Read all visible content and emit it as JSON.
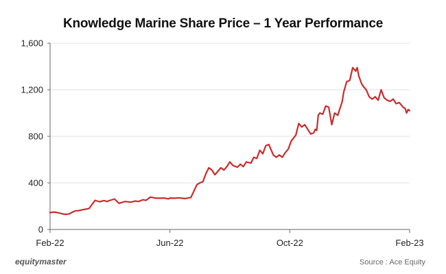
{
  "chart_data": {
    "type": "line",
    "title": "Knowledge Marine Share Price – 1 Year Performance",
    "xlabel": "",
    "ylabel": "",
    "ylim": [
      0,
      1600
    ],
    "yticks": [
      {
        "value": 0,
        "label": "0"
      },
      {
        "value": 400,
        "label": "400"
      },
      {
        "value": 800,
        "label": "800"
      },
      {
        "value": 1200,
        "label": "1,200"
      },
      {
        "value": 1600,
        "label": "1,600"
      }
    ],
    "xlim": [
      0,
      12
    ],
    "xticks": [
      {
        "value": 0,
        "label": "Feb-22"
      },
      {
        "value": 4,
        "label": "Jun-22"
      },
      {
        "value": 8,
        "label": "Oct-22"
      },
      {
        "value": 12,
        "label": "Feb-23"
      }
    ],
    "grid": true,
    "color": "#cc2a2a",
    "series": [
      {
        "name": "Knowledge Marine",
        "x": [
          0,
          0.15,
          0.3,
          0.45,
          0.55,
          0.65,
          0.75,
          0.85,
          0.95,
          1.1,
          1.3,
          1.5,
          1.65,
          1.8,
          1.9,
          2.0,
          2.15,
          2.3,
          2.5,
          2.7,
          2.85,
          2.95,
          3.1,
          3.2,
          3.35,
          3.5,
          3.65,
          3.8,
          3.95,
          4.0,
          4.15,
          4.3,
          4.5,
          4.7,
          4.9,
          5.0,
          5.1,
          5.2,
          5.3,
          5.4,
          5.5,
          5.6,
          5.7,
          5.8,
          5.9,
          6.0,
          6.1,
          6.25,
          6.35,
          6.45,
          6.55,
          6.7,
          6.8,
          6.9,
          7.0,
          7.1,
          7.2,
          7.3,
          7.45,
          7.55,
          7.65,
          7.75,
          7.85,
          7.95,
          8.05,
          8.2,
          8.3,
          8.4,
          8.5,
          8.6,
          8.7,
          8.8,
          8.85,
          8.9,
          8.95,
          9.0,
          9.1,
          9.2,
          9.3,
          9.4,
          9.5,
          9.6,
          9.7,
          9.75,
          9.8,
          9.9,
          10.0,
          10.1,
          10.2,
          10.25,
          10.3,
          10.4,
          10.45,
          10.55,
          10.65,
          10.75,
          10.85,
          10.95,
          11.05,
          11.15,
          11.25,
          11.35,
          11.45,
          11.55,
          11.65,
          11.72,
          11.78,
          11.85,
          11.9,
          11.95,
          12.0
        ],
        "y": [
          145,
          150,
          142,
          132,
          130,
          135,
          150,
          160,
          162,
          170,
          180,
          250,
          238,
          248,
          240,
          250,
          262,
          225,
          240,
          235,
          245,
          240,
          255,
          250,
          278,
          270,
          268,
          270,
          263,
          270,
          268,
          272,
          265,
          275,
          385,
          400,
          410,
          480,
          530,
          510,
          470,
          500,
          530,
          510,
          540,
          580,
          550,
          535,
          560,
          540,
          580,
          570,
          620,
          610,
          680,
          650,
          720,
          730,
          640,
          620,
          640,
          620,
          660,
          690,
          760,
          810,
          910,
          880,
          900,
          860,
          820,
          830,
          860,
          850,
          980,
          1000,
          990,
          1060,
          1050,
          900,
          1000,
          980,
          1060,
          1100,
          1180,
          1270,
          1280,
          1390,
          1360,
          1390,
          1320,
          1250,
          1230,
          1200,
          1140,
          1120,
          1140,
          1110,
          1200,
          1130,
          1110,
          1100,
          1120,
          1080,
          1090,
          1070,
          1050,
          1040,
          1000,
          1030,
          1020
        ]
      }
    ]
  },
  "footer": {
    "brand": "equitymaster",
    "source": "Source : Ace Equity"
  }
}
